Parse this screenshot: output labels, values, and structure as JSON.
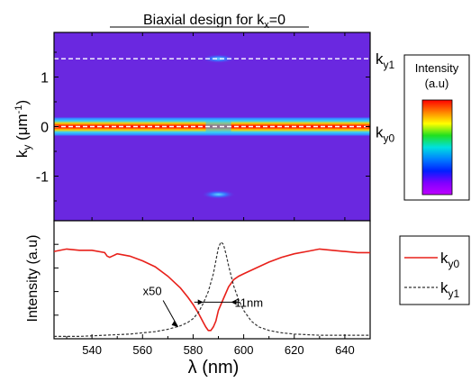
{
  "chart_data": [
    {
      "type": "heatmap",
      "title": "Biaxial design for k",
      "title_sub": "x",
      "title_tail": "=0",
      "ylabel": "k",
      "ylabel_sub": "y",
      "ylabel_unit_pre": " (μm",
      "ylabel_unit_sup": "-1",
      "ylabel_unit_post": ")",
      "ylim": [
        -1.9,
        1.9
      ],
      "yticks": [
        "1",
        "0",
        "-1"
      ],
      "ytick_values": [
        1,
        0,
        -1
      ],
      "dashed_lines": [
        {
          "name": "k",
          "sub": "y1",
          "y": 1.37
        },
        {
          "name": "k",
          "sub": "y0",
          "y": 0.0
        }
      ],
      "bands": [
        {
          "y": 0.0,
          "note": "bright red band at k_y = 0 across all wavelengths"
        },
        {
          "y": 1.37,
          "center_nm": 590
        },
        {
          "y": -1.37,
          "center_nm": 590
        }
      ],
      "colors": {
        "background": "#6a28e0",
        "band": "#ff1a00",
        "band_edge": "#3c8cff",
        "dashed": "#ffffff"
      }
    },
    {
      "type": "line",
      "xlabel": "λ  (nm)",
      "ylabel": "Intensity (a.u)",
      "xlim": [
        525,
        650
      ],
      "xticks": [
        "540",
        "560",
        "580",
        "600",
        "620",
        "640"
      ],
      "xtick_values": [
        540,
        560,
        580,
        600,
        620,
        640
      ],
      "series": [
        {
          "name": "k",
          "sub": "y0",
          "style": "solid",
          "color": "#e8201a",
          "x": [
            525,
            530,
            535,
            540,
            545,
            546,
            547,
            548,
            550,
            555,
            560,
            565,
            570,
            575,
            578,
            580,
            582,
            584,
            585,
            586,
            587,
            588,
            589,
            590,
            592,
            594,
            596,
            598,
            600,
            605,
            610,
            615,
            620,
            625,
            630,
            635,
            640,
            645,
            650
          ],
          "y": [
            0.74,
            0.76,
            0.75,
            0.75,
            0.73,
            0.7,
            0.69,
            0.7,
            0.72,
            0.7,
            0.66,
            0.61,
            0.53,
            0.43,
            0.35,
            0.29,
            0.22,
            0.14,
            0.1,
            0.07,
            0.07,
            0.1,
            0.15,
            0.24,
            0.34,
            0.44,
            0.5,
            0.53,
            0.55,
            0.6,
            0.65,
            0.69,
            0.72,
            0.74,
            0.76,
            0.75,
            0.74,
            0.73,
            0.73
          ]
        },
        {
          "name": "k",
          "sub": "y1",
          "style": "dashed",
          "color": "#333333",
          "x": [
            525,
            535,
            545,
            555,
            560,
            565,
            570,
            575,
            578,
            580,
            582,
            584,
            586,
            588,
            589,
            590,
            591,
            592,
            593,
            594,
            596,
            598,
            600,
            603,
            606,
            610,
            615,
            620,
            630,
            640,
            650
          ],
          "y": [
            0.02,
            0.02,
            0.03,
            0.04,
            0.05,
            0.06,
            0.08,
            0.11,
            0.14,
            0.17,
            0.22,
            0.3,
            0.4,
            0.55,
            0.66,
            0.77,
            0.82,
            0.8,
            0.72,
            0.62,
            0.45,
            0.33,
            0.24,
            0.15,
            0.1,
            0.07,
            0.05,
            0.04,
            0.03,
            0.03,
            0.03
          ]
        }
      ],
      "annotations": [
        {
          "text": "x50",
          "x": 566,
          "y": 0.34,
          "arrow_to": [
            574,
            0.1
          ]
        },
        {
          "text": "11nm",
          "x": 596,
          "y": 0.31,
          "marker_from": 584,
          "marker_to": 595,
          "marker_y": 0.31
        }
      ]
    }
  ],
  "colorbar": {
    "title_line1": "Intensity",
    "title_line2": "(a.u)",
    "stops": [
      "#ff0000",
      "#ff8000",
      "#ffff00",
      "#20e020",
      "#00e0e0",
      "#0080ff",
      "#0020ff",
      "#8000ff",
      "#c000ff"
    ]
  }
}
